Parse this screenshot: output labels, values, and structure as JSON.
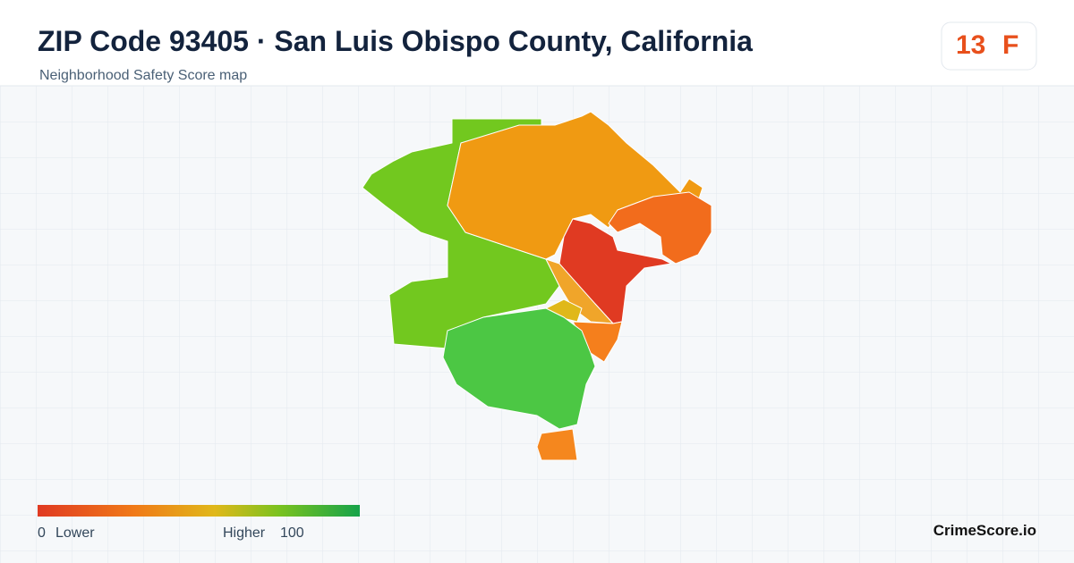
{
  "header": {
    "title": "ZIP Code 93405 · San Luis Obispo County, California",
    "subtitle": "Neighborhood Safety Score map"
  },
  "score": {
    "value": "13",
    "grade": "F"
  },
  "legend": {
    "min": "0",
    "min_label": "Lower",
    "max_label": "Higher",
    "max": "100"
  },
  "brand": "CrimeScore.io"
}
